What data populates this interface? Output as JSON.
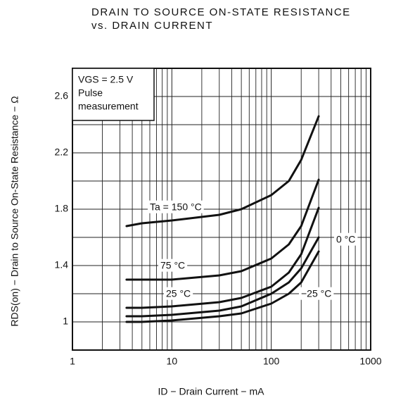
{
  "chart_data": {
    "type": "line",
    "title": "DRAIN TO SOURCE ON-STATE RESISTANCE",
    "subtitle": "vs. DRAIN CURRENT",
    "x_label": "ID − Drain Current − mA",
    "y_label": "RDS(on) − Drain to Source On-State Resistance − Ω",
    "annotations": [
      "VGS = 2.5 V",
      "Pulse",
      "measurement"
    ],
    "x": [
      3.5,
      5,
      10,
      30,
      50,
      100,
      150,
      200,
      300
    ],
    "series": [
      {
        "name": "Ta = 150 °C",
        "color": "#111111",
        "values": [
          1.68,
          1.7,
          1.72,
          1.76,
          1.8,
          1.9,
          2.0,
          2.15,
          2.46
        ]
      },
      {
        "name": "75 °C",
        "color": "#111111",
        "values": [
          1.3,
          1.3,
          1.3,
          1.33,
          1.36,
          1.45,
          1.55,
          1.68,
          2.01
        ]
      },
      {
        "name": "25 °C",
        "color": "#111111",
        "values": [
          1.1,
          1.1,
          1.11,
          1.14,
          1.17,
          1.25,
          1.35,
          1.48,
          1.81
        ]
      },
      {
        "name": "0 °C",
        "color": "#111111",
        "values": [
          1.04,
          1.04,
          1.05,
          1.08,
          1.11,
          1.2,
          1.28,
          1.38,
          1.6
        ]
      },
      {
        "name": "−25 °C",
        "color": "#111111",
        "values": [
          1.0,
          1.0,
          1.01,
          1.04,
          1.06,
          1.13,
          1.2,
          1.28,
          1.5
        ]
      }
    ],
    "xscale": "log",
    "xlim": [
      1,
      1000
    ],
    "xticks": [
      1,
      10,
      100,
      1000
    ],
    "ylim": [
      0.8,
      2.8
    ],
    "yticks": [
      1.0,
      1.4,
      1.8,
      2.2,
      2.6
    ],
    "grid": true
  }
}
